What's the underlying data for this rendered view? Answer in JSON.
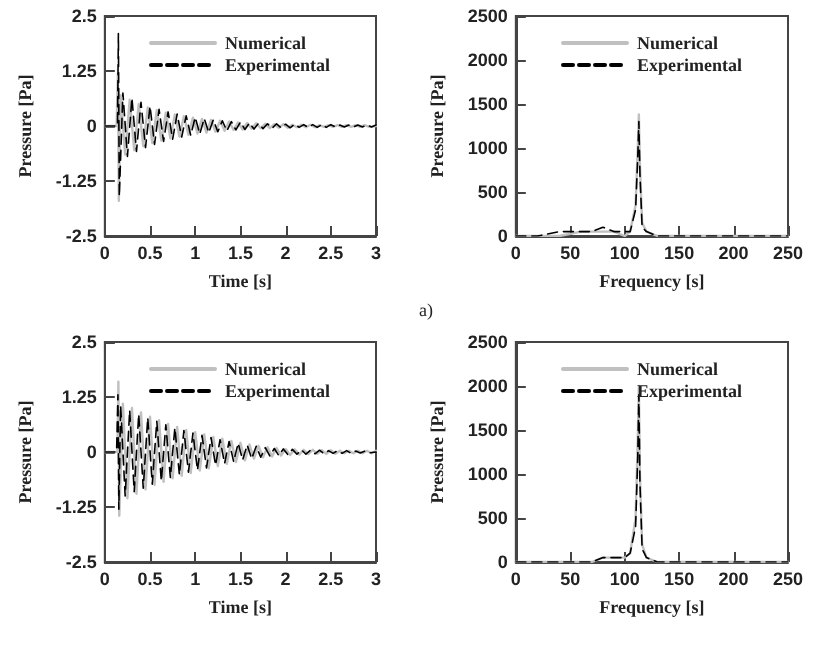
{
  "chart_data": [
    {
      "type": "line",
      "xlabel": "Time [s]",
      "ylabel": "Pressure [Pa]",
      "xlim": [
        0,
        3
      ],
      "xticks": [
        0,
        0.5,
        1,
        1.5,
        2,
        2.5,
        3
      ],
      "ylim": [
        -2.5,
        2.5
      ],
      "yticks": [
        -2.5,
        -1.25,
        0,
        1.25,
        2.5
      ],
      "legend": "top right",
      "grid": false,
      "annotations": [
        "a)"
      ],
      "series": [
        {
          "name": "Numerical",
          "color": "#c0c0c0",
          "line_style": "solid",
          "x": [
            0,
            0.13,
            0.145,
            0.155,
            0.175,
            0.225,
            0.275,
            0.325,
            0.375,
            0.425,
            0.475,
            0.525,
            0.575,
            0.625,
            0.675,
            0.725,
            0.775,
            0.825,
            0.875,
            0.925,
            0.975,
            1.025,
            1.075,
            1.125,
            1.175,
            1.225,
            1.275,
            1.325,
            1.375,
            1.425,
            1.475,
            1.525,
            1.575,
            1.625,
            1.675,
            1.725,
            1.775,
            1.825,
            1.875,
            1.925,
            1.975,
            2.025,
            2.075,
            2.125,
            2.175,
            2.225,
            2.275,
            2.325,
            2.375,
            2.425,
            2.475,
            2.525,
            2.575,
            2.625,
            2.675,
            2.725,
            2.775,
            2.825,
            2.875,
            2.925,
            3
          ],
          "values": [
            0,
            0,
            1.2,
            -1.7,
            0.7,
            -0.65,
            0.6,
            -0.55,
            0.5,
            -0.46,
            0.42,
            -0.39,
            0.36,
            -0.33,
            0.3,
            -0.28,
            0.26,
            -0.24,
            0.22,
            -0.2,
            0.19,
            -0.17,
            0.16,
            -0.15,
            0.14,
            -0.13,
            0.12,
            -0.11,
            0.1,
            -0.09,
            0.08,
            -0.08,
            0.07,
            -0.06,
            0.06,
            -0.05,
            0.05,
            -0.05,
            0.04,
            -0.04,
            0.04,
            -0.04,
            0.03,
            -0.03,
            0.03,
            -0.03,
            0.03,
            -0.03,
            0.02,
            -0.02,
            0.02,
            -0.02,
            0.02,
            -0.02,
            0.02,
            -0.02,
            0.02,
            -0.02,
            0.02,
            -0.02,
            0
          ]
        },
        {
          "name": "Experimental",
          "color": "#000000",
          "line_style": "dashed",
          "x": [
            0,
            0.14,
            0.15,
            0.16,
            0.2,
            0.25,
            0.3,
            0.35,
            0.4,
            0.45,
            0.5,
            0.55,
            0.6,
            0.65,
            0.7,
            0.75,
            0.8,
            0.85,
            0.9,
            0.95,
            1,
            1.05,
            1.1,
            1.15,
            1.2,
            1.25,
            1.3,
            1.35,
            1.4,
            1.45,
            1.5,
            1.55,
            1.6,
            1.65,
            1.7,
            1.75,
            1.8,
            1.85,
            1.9,
            1.95,
            2,
            2.05,
            2.1,
            2.15,
            2.2,
            2.25,
            2.3,
            2.35,
            2.4,
            2.45,
            2.5,
            2.55,
            2.6,
            2.65,
            2.7,
            2.75,
            2.8,
            2.85,
            2.9,
            2.95,
            3
          ],
          "values": [
            0,
            0,
            2.1,
            -1.6,
            0.75,
            -0.69,
            0.64,
            -0.58,
            0.54,
            -0.49,
            0.45,
            -0.42,
            0.38,
            -0.35,
            0.32,
            -0.3,
            0.27,
            -0.25,
            0.23,
            -0.21,
            0.2,
            -0.18,
            0.17,
            -0.15,
            0.14,
            -0.13,
            0.12,
            -0.11,
            0.1,
            -0.09,
            0.09,
            -0.08,
            0.07,
            -0.07,
            0.06,
            -0.06,
            0.05,
            -0.05,
            0.05,
            -0.04,
            0.04,
            -0.04,
            0.04,
            -0.03,
            0.03,
            -0.03,
            0.03,
            -0.03,
            0.03,
            -0.03,
            0.03,
            -0.02,
            0.02,
            -0.02,
            0.02,
            -0.02,
            0.02,
            -0.02,
            0.02,
            -0.02,
            0.02
          ]
        }
      ]
    },
    {
      "type": "line",
      "xlabel": "Frequency [s]",
      "ylabel": "Pressure [Pa]",
      "xlim": [
        0,
        250
      ],
      "xticks": [
        0,
        50,
        100,
        150,
        200,
        250
      ],
      "ylim": [
        0,
        2500
      ],
      "yticks": [
        0,
        500,
        1000,
        1500,
        2000,
        2500
      ],
      "legend": "top right",
      "grid": false,
      "series": [
        {
          "name": "Numerical",
          "color": "#c0c0c0",
          "line_style": "solid",
          "x": [
            0,
            20,
            40,
            60,
            70,
            80,
            90,
            100,
            105,
            110,
            112,
            113,
            114,
            116,
            120,
            130,
            150,
            200,
            250
          ],
          "values": [
            0,
            0,
            0,
            50,
            50,
            50,
            50,
            0,
            50,
            350,
            1000,
            1380,
            800,
            150,
            50,
            0,
            0,
            0,
            0
          ]
        },
        {
          "name": "Experimental",
          "color": "#000000",
          "line_style": "dashed",
          "x": [
            0,
            20,
            40,
            60,
            70,
            80,
            90,
            100,
            105,
            110,
            112,
            113,
            114,
            116,
            120,
            130,
            150,
            200,
            250
          ],
          "values": [
            0,
            0,
            50,
            50,
            50,
            100,
            50,
            50,
            50,
            300,
            900,
            1300,
            700,
            100,
            50,
            0,
            0,
            0,
            0
          ]
        }
      ]
    },
    {
      "type": "line",
      "xlabel": "Time [s]",
      "ylabel": "Pressure [Pa]",
      "xlim": [
        0,
        3
      ],
      "xticks": [
        0,
        0.5,
        1,
        1.5,
        2,
        2.5,
        3
      ],
      "ylim": [
        -2.5,
        2.5
      ],
      "yticks": [
        -2.5,
        -1.25,
        0,
        1.25,
        2.5
      ],
      "legend": "top right",
      "grid": false,
      "series": [
        {
          "name": "Numerical",
          "color": "#c0c0c0",
          "line_style": "solid",
          "x": [
            0,
            0.14,
            0.15,
            0.16,
            0.2,
            0.25,
            0.3,
            0.35,
            0.4,
            0.45,
            0.5,
            0.55,
            0.6,
            0.65,
            0.7,
            0.75,
            0.8,
            0.85,
            0.9,
            0.95,
            1,
            1.05,
            1.1,
            1.15,
            1.2,
            1.25,
            1.3,
            1.35,
            1.4,
            1.45,
            1.5,
            1.55,
            1.6,
            1.65,
            1.7,
            1.75,
            1.8,
            1.85,
            1.9,
            1.95,
            2,
            2.05,
            2.1,
            2.15,
            2.2,
            2.25,
            2.3,
            2.35,
            2.4,
            2.45,
            2.5,
            2.55,
            2.6,
            2.65,
            2.7,
            2.75,
            2.8,
            2.85,
            2.9,
            2.95,
            3
          ],
          "values": [
            0,
            0,
            1.6,
            -1.45,
            1.1,
            -1.05,
            1,
            -0.95,
            0.9,
            -0.85,
            0.8,
            -0.75,
            0.72,
            -0.68,
            0.64,
            -0.6,
            0.57,
            -0.54,
            0.5,
            -0.48,
            0.45,
            -0.42,
            0.4,
            -0.37,
            0.34,
            -0.32,
            0.3,
            -0.27,
            0.25,
            -0.23,
            0.21,
            -0.19,
            0.17,
            -0.15,
            0.14,
            -0.12,
            0.11,
            -0.1,
            0.09,
            -0.08,
            0.07,
            -0.07,
            0.06,
            -0.06,
            0.05,
            -0.05,
            0.05,
            -0.04,
            0.04,
            -0.04,
            0.04,
            -0.04,
            0.03,
            -0.03,
            0.03,
            -0.03,
            0.03,
            -0.03,
            0.03,
            -0.03,
            0.03
          ]
        },
        {
          "name": "Experimental",
          "color": "#000000",
          "line_style": "dashed",
          "x": [
            0,
            0.13,
            0.145,
            0.155,
            0.175,
            0.225,
            0.275,
            0.325,
            0.375,
            0.425,
            0.475,
            0.525,
            0.575,
            0.625,
            0.675,
            0.725,
            0.775,
            0.825,
            0.875,
            0.925,
            0.975,
            1.025,
            1.075,
            1.125,
            1.175,
            1.225,
            1.275,
            1.325,
            1.375,
            1.425,
            1.475,
            1.525,
            1.575,
            1.625,
            1.675,
            1.725,
            1.775,
            1.825,
            1.875,
            1.925,
            1.975,
            2.025,
            2.075,
            2.125,
            2.175,
            2.225,
            2.275,
            2.325,
            2.375,
            2.425,
            2.475,
            2.525,
            2.575,
            2.625,
            2.675,
            2.725,
            2.775,
            2.825,
            2.875,
            2.925,
            3
          ],
          "values": [
            0,
            0,
            1.3,
            -1.3,
            1.05,
            -1,
            0.95,
            -0.9,
            0.86,
            -0.82,
            0.78,
            -0.73,
            0.7,
            -0.66,
            0.62,
            -0.58,
            0.55,
            -0.52,
            0.49,
            -0.46,
            0.43,
            -0.41,
            0.38,
            -0.36,
            0.33,
            -0.3,
            0.28,
            -0.26,
            0.24,
            -0.22,
            0.2,
            -0.18,
            0.16,
            -0.15,
            0.13,
            -0.12,
            0.1,
            -0.09,
            0.08,
            -0.08,
            0.07,
            -0.06,
            0.06,
            -0.05,
            0.05,
            -0.05,
            0.04,
            -0.04,
            0.04,
            -0.04,
            0.03,
            -0.03,
            0.03,
            -0.03,
            0.03,
            -0.03,
            0.02,
            -0.02,
            0.02,
            -0.02,
            0
          ]
        }
      ]
    },
    {
      "type": "line",
      "xlabel": "Frequency [s]",
      "ylabel": "Pressure [Pa]",
      "xlim": [
        0,
        250
      ],
      "xticks": [
        0,
        50,
        100,
        150,
        200,
        250
      ],
      "ylim": [
        0,
        2500
      ],
      "yticks": [
        0,
        500,
        1000,
        1500,
        2000,
        2500
      ],
      "legend": "top right",
      "grid": false,
      "series": [
        {
          "name": "Numerical",
          "color": "#c0c0c0",
          "line_style": "solid",
          "x": [
            0,
            20,
            40,
            60,
            70,
            80,
            90,
            100,
            105,
            110,
            112,
            113,
            114,
            116,
            120,
            130,
            150,
            200,
            250
          ],
          "values": [
            0,
            0,
            0,
            0,
            0,
            50,
            50,
            50,
            100,
            500,
            1400,
            2000,
            1000,
            200,
            50,
            0,
            0,
            0,
            0
          ]
        },
        {
          "name": "Experimental",
          "color": "#000000",
          "line_style": "dashed",
          "x": [
            0,
            20,
            40,
            60,
            70,
            80,
            90,
            100,
            105,
            110,
            112,
            113,
            114,
            116,
            120,
            130,
            150,
            200,
            250
          ],
          "values": [
            0,
            0,
            0,
            0,
            0,
            50,
            50,
            50,
            100,
            400,
            1200,
            1900,
            900,
            150,
            50,
            0,
            0,
            0,
            0
          ]
        }
      ]
    }
  ]
}
